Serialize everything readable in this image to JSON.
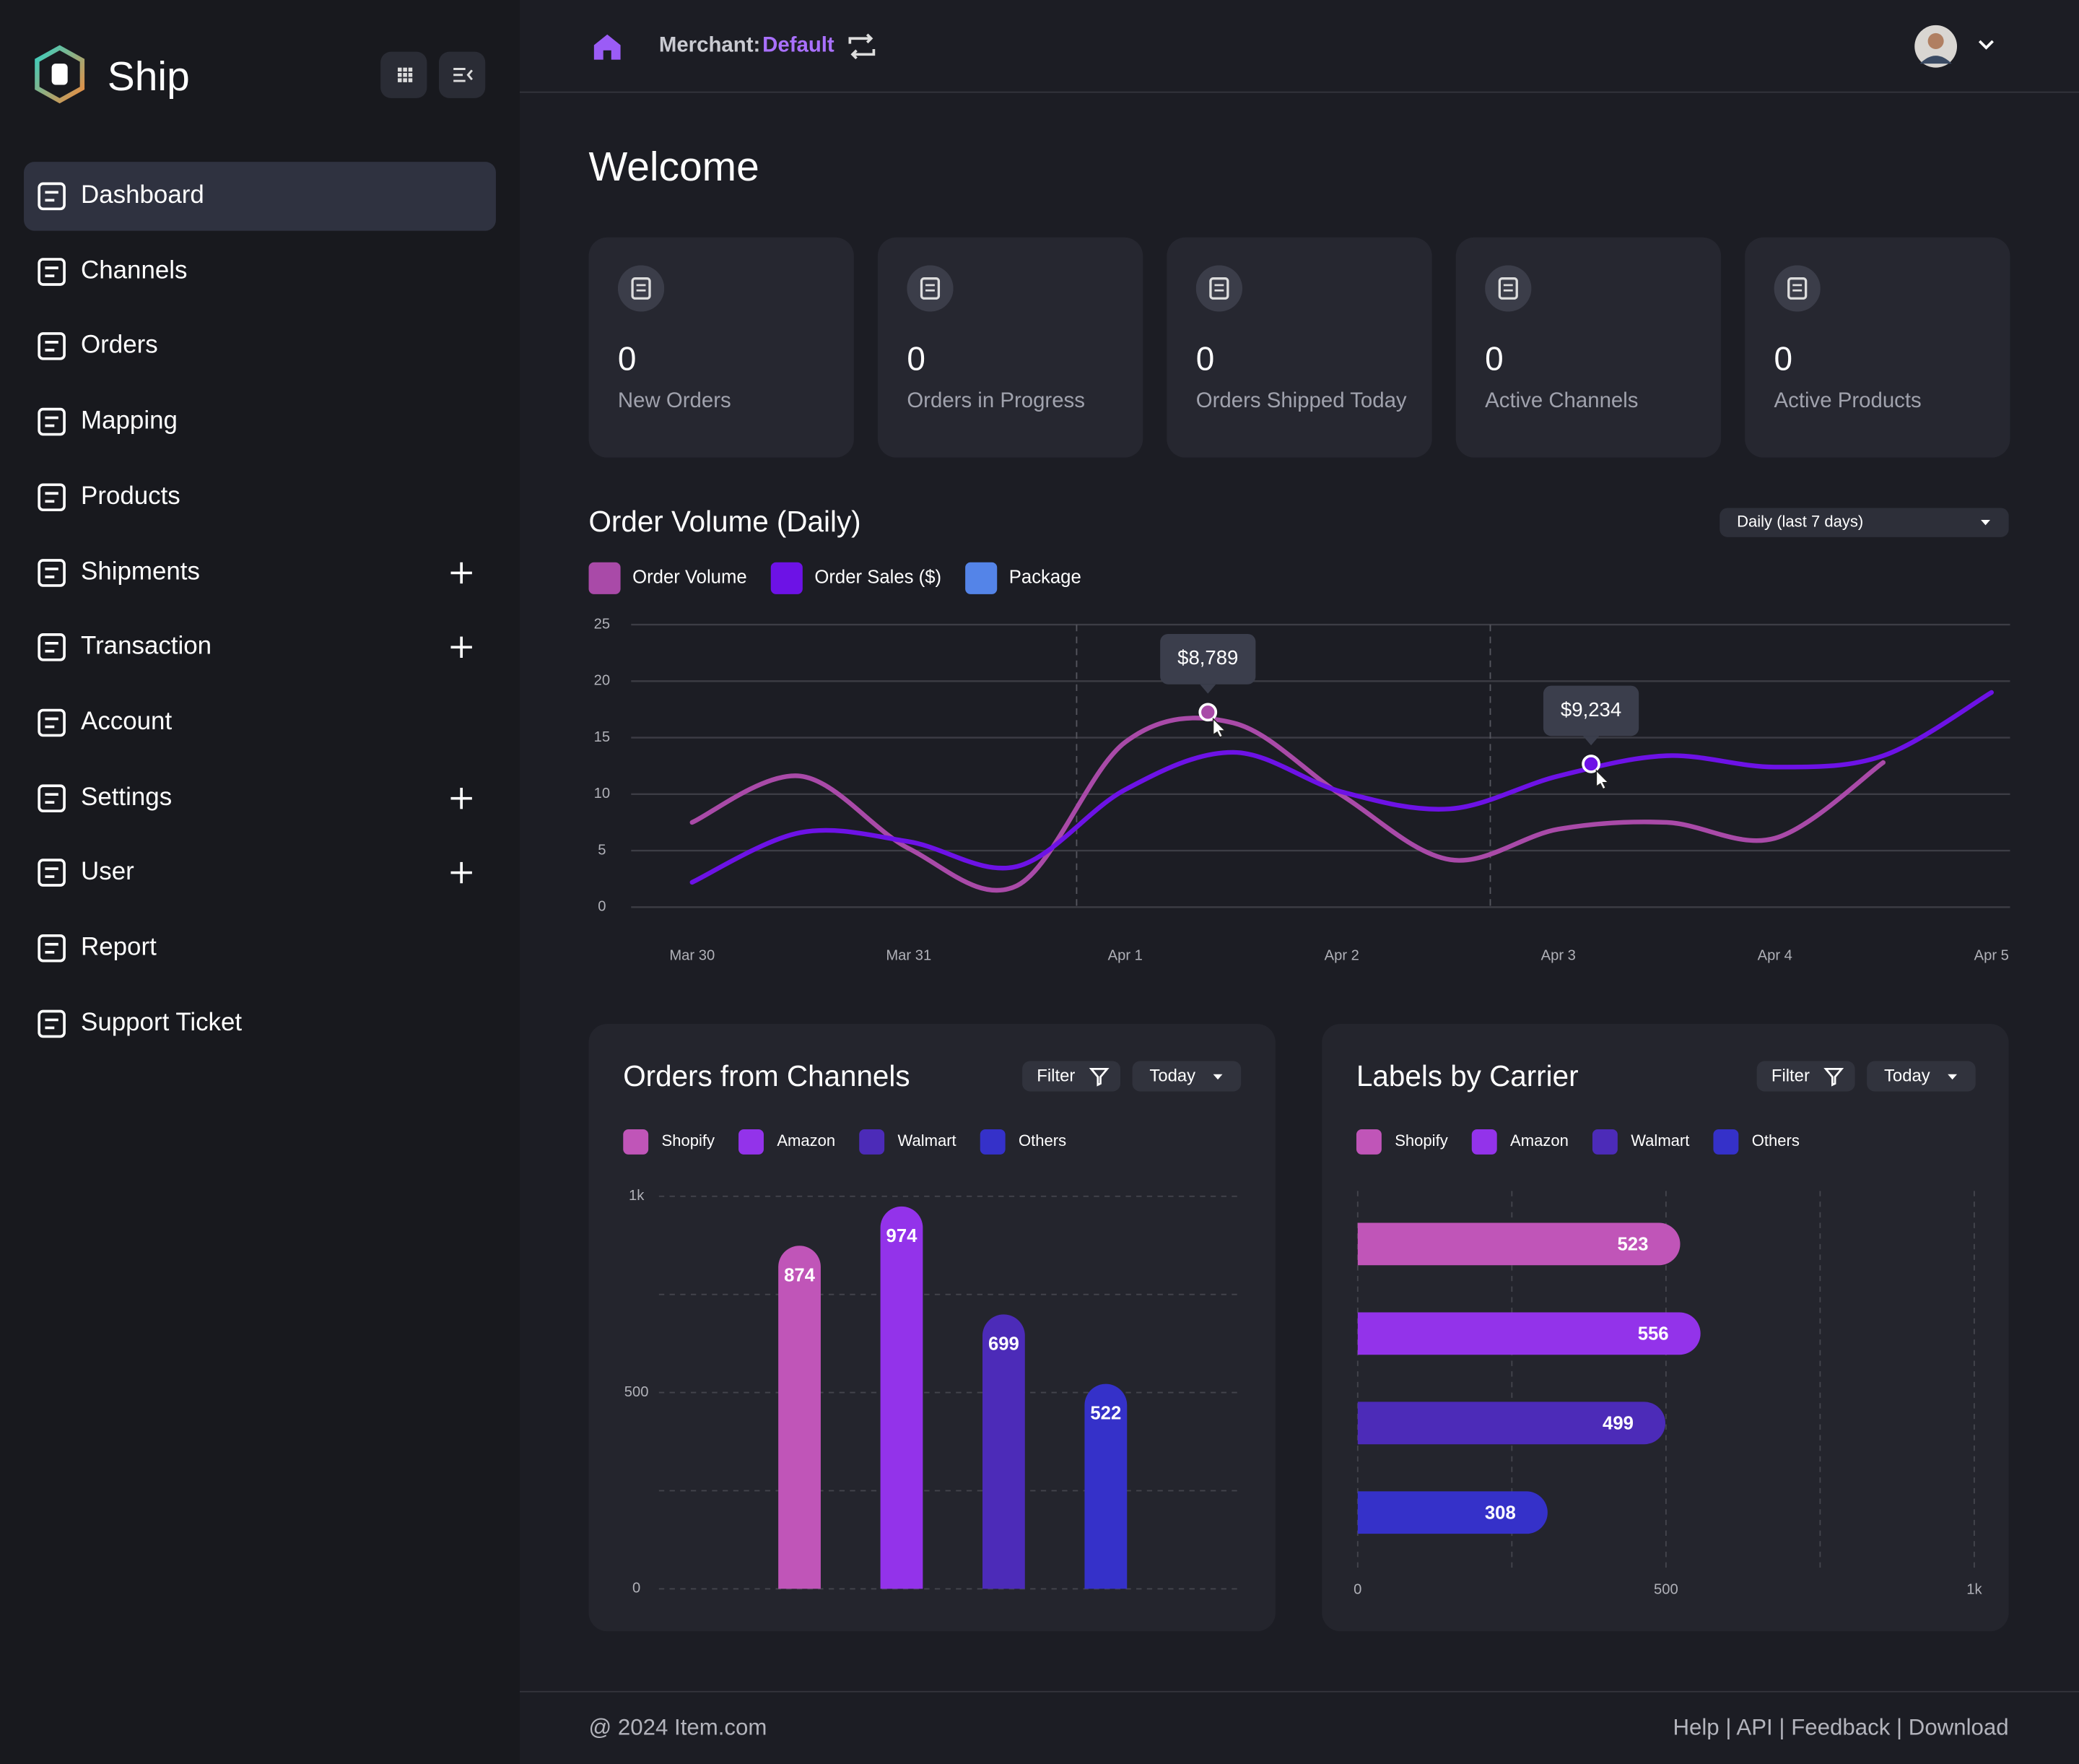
{
  "sidebar": {
    "brand": "Ship",
    "nav": [
      {
        "label": "Dashboard",
        "selected": true,
        "expandable": false
      },
      {
        "label": "Channels",
        "selected": false,
        "expandable": false
      },
      {
        "label": "Orders",
        "selected": false,
        "expandable": false
      },
      {
        "label": "Mapping",
        "selected": false,
        "expandable": false
      },
      {
        "label": "Products",
        "selected": false,
        "expandable": false
      },
      {
        "label": "Shipments",
        "selected": false,
        "expandable": true
      },
      {
        "label": "Transaction",
        "selected": false,
        "expandable": true
      },
      {
        "label": "Account",
        "selected": false,
        "expandable": false
      },
      {
        "label": "Settings",
        "selected": false,
        "expandable": true
      },
      {
        "label": "User",
        "selected": false,
        "expandable": true
      },
      {
        "label": "Report",
        "selected": false,
        "expandable": false
      },
      {
        "label": "Support Ticket",
        "selected": false,
        "expandable": false
      }
    ]
  },
  "header": {
    "merchant_label": "Merchant:",
    "merchant": "Default"
  },
  "welcome": "Welcome",
  "stats": [
    {
      "value": 0,
      "label": "New Orders"
    },
    {
      "value": 0,
      "label": "Orders in Progress"
    },
    {
      "value": 0,
      "label": "Orders Shipped Today"
    },
    {
      "value": 0,
      "label": "Active Channels"
    },
    {
      "value": 0,
      "label": "Active Products"
    }
  ],
  "chart_data": [
    {
      "type": "line",
      "title": "Order Volume (Daily)",
      "period": "Daily (last 7 days)",
      "categories": [
        "Mar 30",
        null,
        "Mar 31",
        null,
        "Apr 1",
        null,
        "Apr 2",
        null,
        "Apr 3",
        null,
        "Apr 4",
        null,
        "Apr 5"
      ],
      "series": [
        {
          "name": "Order Volume",
          "color": "#a94aa8",
          "values": [
            7.5,
            11.6,
            5.2,
            1.9,
            14.6,
            16.3,
            9.9,
            4.2,
            6.9,
            7.5,
            6.1,
            12.8,
            null
          ]
        },
        {
          "name": "Order Sales ($)",
          "color": "#6d12e6",
          "values": [
            2.2,
            6.6,
            5.8,
            3.6,
            10.4,
            13.7,
            10.2,
            8.7,
            11.6,
            13.4,
            12.4,
            13.4,
            19.0
          ]
        },
        {
          "name": "Package",
          "color": "#5484e8",
          "values": [
            null,
            null,
            null,
            null,
            null,
            null,
            null,
            null,
            null,
            null,
            null,
            null,
            null
          ]
        }
      ],
      "ylim": [
        0,
        25
      ],
      "yticks": [
        0,
        5,
        10,
        15,
        20,
        25
      ],
      "grid": true,
      "annotations": [
        {
          "text": "$8,789"
        },
        {
          "text": "$9,234"
        }
      ]
    },
    {
      "type": "bar",
      "title": "Orders from Channels",
      "controls": [
        "Filter",
        "Today"
      ],
      "categories": [
        "Shopify",
        "Amazon",
        "Walmart",
        "Others"
      ],
      "values": [
        874,
        974,
        699,
        522
      ],
      "colors": [
        "#c055b8",
        "#9333ea",
        "#4c2bb8",
        "#3531c9"
      ],
      "ylim": [
        0,
        1000
      ],
      "yticks": [
        0,
        500,
        {
          "value": 1000,
          "label": "1k"
        }
      ],
      "grid": true
    },
    {
      "type": "hbar",
      "title": "Labels by Carrier",
      "controls": [
        "Filter",
        "Today"
      ],
      "categories": [
        "Shopify",
        "Amazon",
        "Walmart",
        "Others"
      ],
      "values": [
        523,
        556,
        499,
        308
      ],
      "colors": [
        "#c055b8",
        "#9333ea",
        "#4c2bb8",
        "#3531c9"
      ],
      "xlim": [
        0,
        1000
      ],
      "xticks": [
        0,
        500,
        {
          "value": 1000,
          "label": "1k"
        }
      ],
      "grid": true
    }
  ],
  "footer": {
    "copyright": "@ 2024 Item.com",
    "links": "Help | API | Feedback | Download"
  }
}
